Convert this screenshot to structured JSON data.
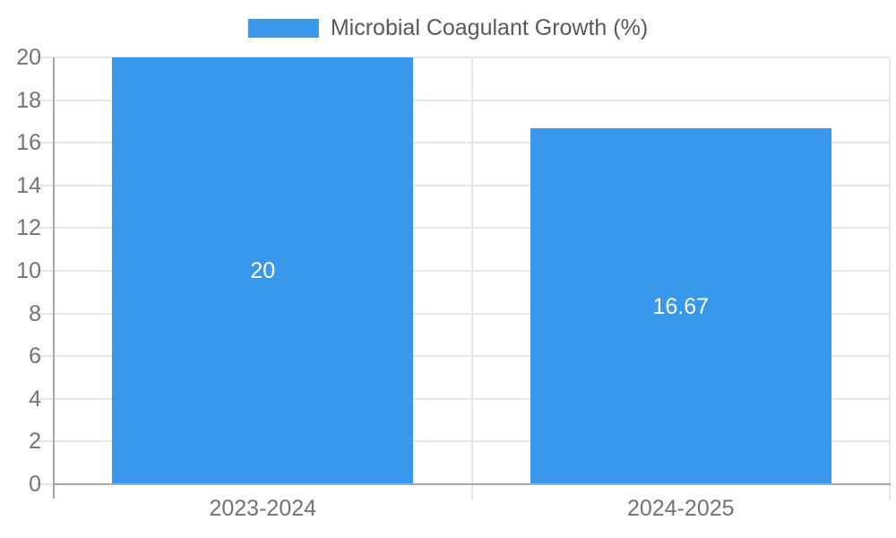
{
  "chart_data": {
    "type": "bar",
    "title": "",
    "series_name": "Microbial Coagulant Growth (%)",
    "categories": [
      "2023-2024",
      "2024-2025"
    ],
    "values": [
      20,
      16.67
    ],
    "value_labels": [
      "20",
      "16.67"
    ],
    "xlabel": "",
    "ylabel": "",
    "ylim": [
      0,
      20
    ],
    "yticks": [
      0,
      2,
      4,
      6,
      8,
      10,
      12,
      14,
      16,
      18,
      20
    ],
    "grid": true,
    "legend_position": "top-center",
    "colors": {
      "bar": "#3899ec",
      "grid_line": "#e6e6e6",
      "axis_line": "#a8a8a8",
      "tick_label": "#737373",
      "legend_text": "#595959",
      "bar_label": "#ffffff",
      "background": "#ffffff"
    }
  }
}
